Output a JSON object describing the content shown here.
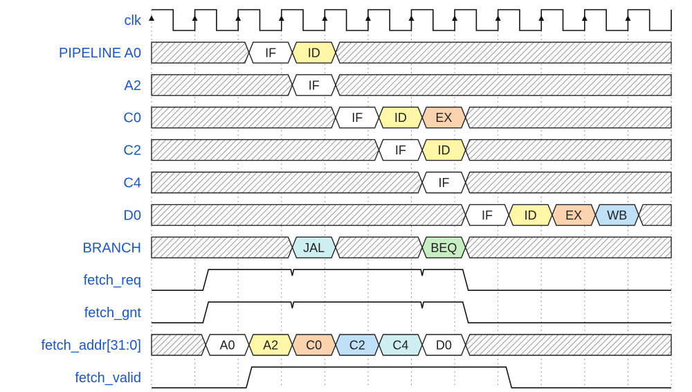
{
  "colors": {
    "label": "#1a56c9",
    "hatch": "#7a7a7a",
    "IF": "#ffffff",
    "ID": "#fff6a8",
    "EX": "#fbd3ae",
    "WB": "#bfe0f7",
    "JAL": "#cdeff2",
    "BEQ": "#c7eec3",
    "A0": "#ffffff",
    "A2": "#fff6a8",
    "C0": "#fbd3ae",
    "C2": "#bfe0f7",
    "C4": "#cdeff2",
    "D0": "#ffffff"
  },
  "timing": {
    "cycles": 12,
    "signals": [
      {
        "name": "clk",
        "type": "clock"
      },
      {
        "name": "PIPELINE A0",
        "type": "bus",
        "segments": [
          {
            "start": 0,
            "end": 2.25,
            "hatch": true
          },
          {
            "start": 2.25,
            "end": 3.25,
            "label": "IF",
            "color": "IF"
          },
          {
            "start": 3.25,
            "end": 4.25,
            "label": "ID",
            "color": "ID"
          },
          {
            "start": 4.25,
            "end": 12,
            "hatch": true
          }
        ]
      },
      {
        "name": "A2",
        "type": "bus",
        "segments": [
          {
            "start": 0,
            "end": 3.25,
            "hatch": true
          },
          {
            "start": 3.25,
            "end": 4.25,
            "label": "IF",
            "color": "IF"
          },
          {
            "start": 4.25,
            "end": 12,
            "hatch": true
          }
        ]
      },
      {
        "name": "C0",
        "type": "bus",
        "segments": [
          {
            "start": 0,
            "end": 4.25,
            "hatch": true
          },
          {
            "start": 4.25,
            "end": 5.25,
            "label": "IF",
            "color": "IF"
          },
          {
            "start": 5.25,
            "end": 6.25,
            "label": "ID",
            "color": "ID"
          },
          {
            "start": 6.25,
            "end": 7.25,
            "label": "EX",
            "color": "EX"
          },
          {
            "start": 7.25,
            "end": 12,
            "hatch": true
          }
        ]
      },
      {
        "name": "C2",
        "type": "bus",
        "segments": [
          {
            "start": 0,
            "end": 5.25,
            "hatch": true
          },
          {
            "start": 5.25,
            "end": 6.25,
            "label": "IF",
            "color": "IF"
          },
          {
            "start": 6.25,
            "end": 7.25,
            "label": "ID",
            "color": "ID"
          },
          {
            "start": 7.25,
            "end": 12,
            "hatch": true
          }
        ]
      },
      {
        "name": "C4",
        "type": "bus",
        "segments": [
          {
            "start": 0,
            "end": 6.25,
            "hatch": true
          },
          {
            "start": 6.25,
            "end": 7.25,
            "label": "IF",
            "color": "IF"
          },
          {
            "start": 7.25,
            "end": 12,
            "hatch": true
          }
        ]
      },
      {
        "name": "D0",
        "type": "bus",
        "segments": [
          {
            "start": 0,
            "end": 7.25,
            "hatch": true
          },
          {
            "start": 7.25,
            "end": 8.25,
            "label": "IF",
            "color": "IF"
          },
          {
            "start": 8.25,
            "end": 9.25,
            "label": "ID",
            "color": "ID"
          },
          {
            "start": 9.25,
            "end": 10.25,
            "label": "EX",
            "color": "EX"
          },
          {
            "start": 10.25,
            "end": 11.25,
            "label": "WB",
            "color": "WB"
          },
          {
            "start": 11.25,
            "end": 12,
            "hatch": true
          }
        ]
      },
      {
        "name": "BRANCH",
        "type": "bus",
        "segments": [
          {
            "start": 0,
            "end": 3.25,
            "hatch": true
          },
          {
            "start": 3.25,
            "end": 4.25,
            "label": "JAL",
            "color": "JAL"
          },
          {
            "start": 4.25,
            "end": 6.25,
            "hatch": true
          },
          {
            "start": 6.25,
            "end": 7.25,
            "label": "BEQ",
            "color": "BEQ"
          },
          {
            "start": 7.25,
            "end": 12,
            "hatch": true
          }
        ]
      },
      {
        "name": "fetch_req",
        "type": "digital",
        "rises": [
          1.25
        ],
        "falls": [
          7.25
        ],
        "glitches": [
          3.25,
          6.25
        ]
      },
      {
        "name": "fetch_gnt",
        "type": "digital",
        "rises": [
          1.25
        ],
        "falls": [
          7.25
        ],
        "glitches": [
          3.25,
          6.25
        ]
      },
      {
        "name": "fetch_addr[31:0]",
        "type": "bus",
        "segments": [
          {
            "start": 0,
            "end": 1.25,
            "hatch": true
          },
          {
            "start": 1.25,
            "end": 2.25,
            "label": "A0",
            "color": "A0"
          },
          {
            "start": 2.25,
            "end": 3.25,
            "label": "A2",
            "color": "A2"
          },
          {
            "start": 3.25,
            "end": 4.25,
            "label": "C0",
            "color": "C0"
          },
          {
            "start": 4.25,
            "end": 5.25,
            "label": "C2",
            "color": "C2"
          },
          {
            "start": 5.25,
            "end": 6.25,
            "label": "C4",
            "color": "C4"
          },
          {
            "start": 6.25,
            "end": 7.25,
            "label": "D0",
            "color": "D0"
          },
          {
            "start": 7.25,
            "end": 12,
            "hatch": true
          }
        ]
      },
      {
        "name": "fetch_valid",
        "type": "digital",
        "rises": [
          2.25
        ],
        "falls": [
          8.25
        ],
        "glitches": []
      }
    ]
  }
}
